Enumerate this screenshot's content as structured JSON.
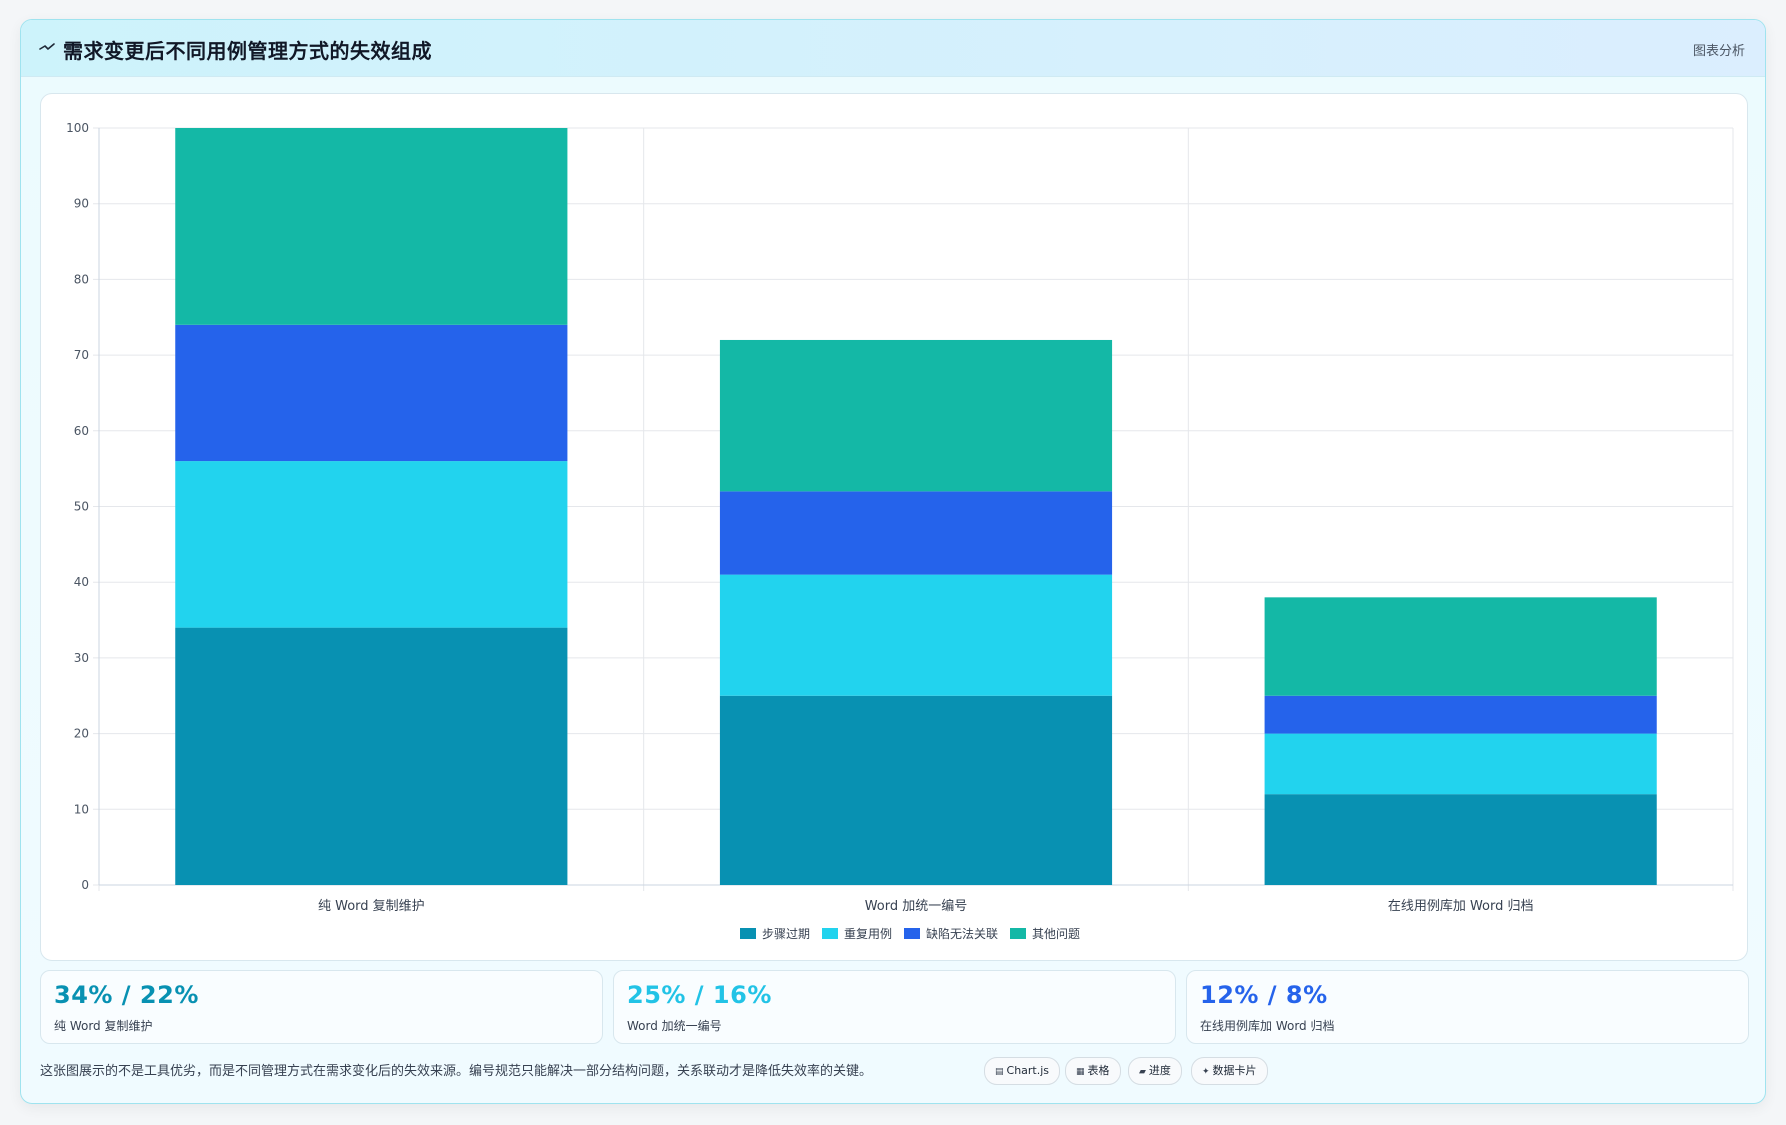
{
  "header": {
    "icon": "trend-line-icon",
    "title": "需求变更后不同用例管理方式的失效组成",
    "right_label": "图表分析"
  },
  "chart_data": {
    "type": "bar",
    "stacked": true,
    "categories": [
      "纯 Word 复制维护",
      "Word 加统一编号",
      "在线用例库加 Word 归档"
    ],
    "series": [
      {
        "name": "步骤过期",
        "color": "#0891b2",
        "values": [
          34,
          25,
          12
        ]
      },
      {
        "name": "重复用例",
        "color": "#22d3ee",
        "values": [
          22,
          16,
          8
        ]
      },
      {
        "name": "缺陷无法关联",
        "color": "#2563eb",
        "values": [
          18,
          11,
          5
        ]
      },
      {
        "name": "其他问题",
        "color": "#14b8a6",
        "values": [
          26,
          20,
          13
        ]
      }
    ],
    "ylim": [
      0,
      100
    ],
    "yticks": [
      0,
      10,
      20,
      30,
      40,
      50,
      60,
      70,
      80,
      90,
      100
    ],
    "grid": true,
    "legend_position": "bottom",
    "title": "",
    "xlabel": "",
    "ylabel": ""
  },
  "stat_cards": [
    {
      "value": "34% / 22%",
      "label": "纯 Word 复制维护",
      "color": "#0891b2"
    },
    {
      "value": "25% / 16%",
      "label": "Word 加统一编号",
      "color": "#22c3e6"
    },
    {
      "value": "12% / 8%",
      "label": "在线用例库加 Word 归档",
      "color": "#2563eb"
    }
  ],
  "footer": {
    "note": "这张图展示的不是工具优劣，而是不同管理方式在需求变化后的失效来源。编号规范只能解决一部分结构问题，关系联动才是降低失效率的关键。"
  },
  "tags": [
    {
      "icon": "chart-icon",
      "glyph": "▤",
      "label": "Chart.js"
    },
    {
      "icon": "table-icon",
      "glyph": "▦",
      "label": "表格"
    },
    {
      "icon": "progress-icon",
      "glyph": "▰",
      "label": "进度"
    },
    {
      "icon": "sparkle-icon",
      "glyph": "✦",
      "label": "数据卡片"
    }
  ]
}
